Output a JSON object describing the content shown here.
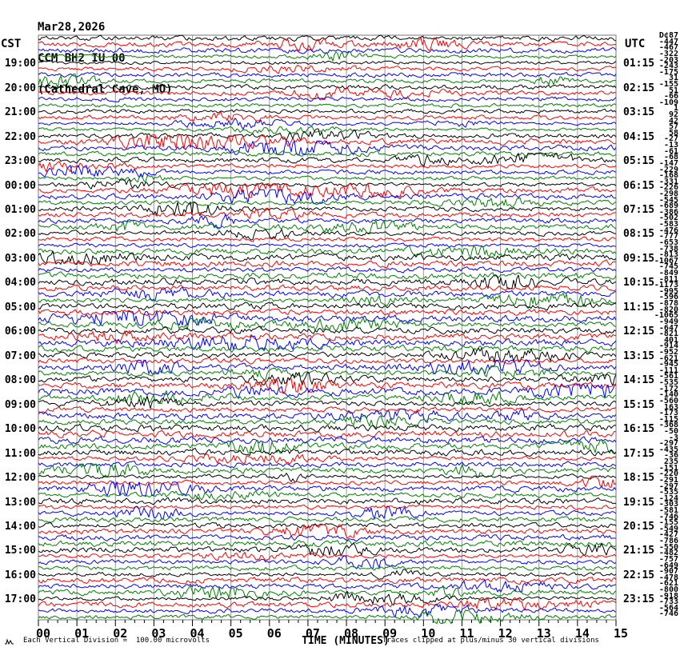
{
  "header": {
    "date": "Mar28,2026",
    "station": "CCM BH2 IU 00",
    "location": "(Cathedral Cave, MO)"
  },
  "corners": {
    "left_tz": "CST",
    "right_tz": "UTC"
  },
  "footer": {
    "left": "Each Vertical Division =  100.00 microvolts",
    "right": "Traces clipped at plus/minus 30 vertical divisions"
  },
  "chart_data": {
    "type": "line",
    "subtype": "helicorder-seismogram",
    "title": "CCM BH2 IU 00 (Cathedral Cave, MO) Mar28,2026",
    "xlabel": "TIME (MINUTES)",
    "x_range": [
      0,
      15
    ],
    "minute_labels": [
      "00",
      "01",
      "02",
      "03",
      "04",
      "05",
      "06",
      "07",
      "08",
      "09",
      "10",
      "11",
      "12",
      "13",
      "14",
      "15"
    ],
    "rows": 96,
    "minutes_per_row": 15,
    "grid": "vertical line each minute",
    "row_color_cycle": [
      "#000000",
      "#ff0000",
      "#0000ff",
      "#008000"
    ],
    "grid_color": "#999999",
    "left_time_labels_cst": [
      "19:00",
      "20:00",
      "21:00",
      "22:00",
      "23:00",
      "00:00",
      "01:00",
      "02:00",
      "03:00",
      "04:00",
      "05:00",
      "06:00",
      "07:00",
      "08:00",
      "09:00",
      "10:00",
      "11:00",
      "12:00",
      "13:00",
      "14:00",
      "15:00",
      "16:00",
      "17:00"
    ],
    "right_time_labels_utc": [
      "01:15",
      "02:15",
      "03:15",
      "04:15",
      "05:15",
      "06:15",
      "07:15",
      "08:15",
      "09:15",
      "10:15",
      "11:15",
      "12:15",
      "13:15",
      "14:15",
      "15:15",
      "16:15",
      "17:15",
      "18:15",
      "19:15",
      "20:15",
      "21:15",
      "22:15",
      "23:15"
    ],
    "row_end_values": [
      "D¢87",
      "-447",
      "-467",
      "-322",
      "-203",
      "-243",
      "-175",
      "31",
      "-155",
      "51",
      "-66",
      "-109",
      "1",
      "92",
      "42",
      "57",
      "58",
      "-27",
      "-13",
      "-61",
      "-68",
      "-147",
      "-229",
      "-168",
      "-331",
      "-226",
      "-298",
      "-545",
      "-689",
      "-386",
      "-502",
      "-583",
      "-476",
      "-777",
      "-653",
      "-738",
      "-813",
      "-1067",
      "-745",
      "-849",
      "-811",
      "-1173",
      "-995",
      "-596",
      "-878",
      "-820",
      "-1065",
      "-949",
      "-647",
      "-821",
      "401",
      "-914",
      "-952",
      "-621",
      "-945",
      "-111",
      "-561",
      "-535",
      "-172",
      "-140",
      "-560",
      "163",
      "-173",
      "-115",
      "-368",
      "-50",
      "-3",
      "-297",
      "-435",
      "-36",
      "235",
      "-151",
      "-220",
      "-291",
      "-297",
      "-535",
      "-124",
      "-303",
      "-581",
      "-746",
      "-155",
      "-549",
      "-427",
      "-786",
      "-550",
      "-482",
      "-757",
      "-649",
      "-907",
      "-478",
      "-621",
      "-800",
      "-918",
      "-733",
      "-564",
      "-746"
    ],
    "traces": "continuous seismic background noise, amplitude varies by row; clipped at plus/minus 30 vertical divisions",
    "vertical_division": "100.00 microvolts"
  }
}
